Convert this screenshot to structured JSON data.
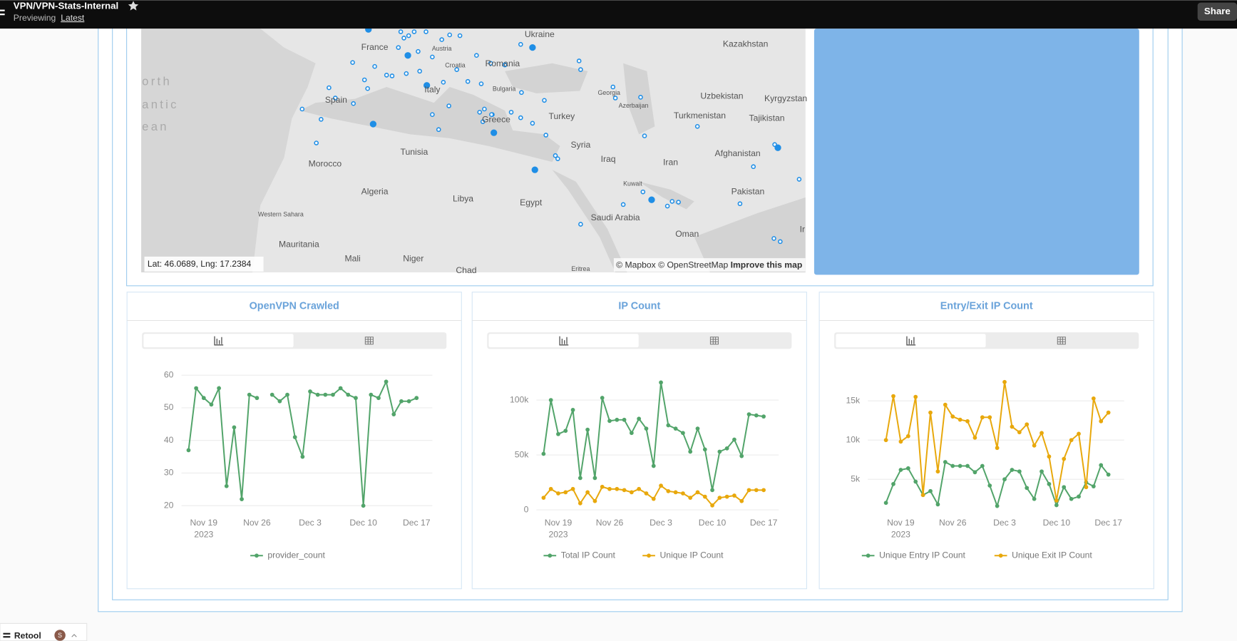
{
  "header": {
    "title": "VPN/VPN-Stats-Internal",
    "previewing": "Previewing",
    "version": "Latest",
    "share": "Share"
  },
  "map": {
    "labels": [
      "France",
      "Ukraine",
      "Kazakhstan",
      "Austria",
      "Croatia",
      "Romania",
      "Bulgaria",
      "Spain",
      "Italy",
      "Georgia",
      "Azerbaijan",
      "Uzbekistan",
      "Kyrgyzstan",
      "Greece",
      "Turkey",
      "Turkmenistan",
      "Tajikistan",
      "Syria",
      "Tunisia",
      "Morocco",
      "Iraq",
      "Iran",
      "Afghanistan",
      "Kuwait",
      "Algeria",
      "Libya",
      "Egypt",
      "Pakistan",
      "Western Sahara",
      "Saudi Arabia",
      "Oman",
      "Mauritania",
      "Mali",
      "Niger",
      "Chad",
      "Eritrea",
      "Ir",
      "orth",
      "antic",
      "ean"
    ],
    "coords": "Lat: 46.0689, Lng: 17.2384",
    "attribution": "© Mapbox © OpenStreetMap",
    "improve": "Improve this map"
  },
  "footer": {
    "brand": "Retool",
    "avatar": "S"
  },
  "chart_data": [
    {
      "type": "line",
      "title": "OpenVPN Crawled",
      "x": [
        "2023-11-17",
        "2023-11-18",
        "2023-11-19",
        "2023-11-20",
        "2023-11-21",
        "2023-11-22",
        "2023-11-23",
        "2023-11-24",
        "2023-11-25",
        "2023-11-26",
        "2023-11-27",
        "2023-11-28",
        "2023-11-29",
        "2023-11-30",
        "2023-12-01",
        "2023-12-02",
        "2023-12-03",
        "2023-12-04",
        "2023-12-05",
        "2023-12-06",
        "2023-12-07",
        "2023-12-08",
        "2023-12-09",
        "2023-12-10",
        "2023-12-11",
        "2023-12-12",
        "2023-12-13",
        "2023-12-14",
        "2023-12-15",
        "2023-12-16",
        "2023-12-17"
      ],
      "series": [
        {
          "name": "provider_count",
          "color": "#52a46a",
          "values": [
            37,
            56,
            53,
            51,
            56,
            26,
            44,
            22,
            54,
            53,
            null,
            54,
            52,
            54,
            41,
            35,
            55,
            54,
            54,
            54,
            56,
            54,
            53,
            20,
            54,
            53,
            58,
            48,
            52,
            52,
            53
          ]
        }
      ],
      "xlim": [
        "2023-11-17",
        "2023-12-17"
      ],
      "xticks": [
        {
          "value": "2023-11-19",
          "label": "Nov 19"
        },
        {
          "value": "2023-11-26",
          "label": "Nov 26"
        },
        {
          "value": "2023-12-03",
          "label": "Dec 3"
        },
        {
          "value": "2023-12-10",
          "label": "Dec 10"
        },
        {
          "value": "2023-12-17",
          "label": "Dec 17"
        }
      ],
      "year_label": "2023",
      "ylim": [
        18,
        62
      ],
      "yticks": [
        20,
        30,
        40,
        50,
        60
      ],
      "grid": true
    },
    {
      "type": "line",
      "title": "IP Count",
      "x": [
        "2023-11-17",
        "2023-11-18",
        "2023-11-19",
        "2023-11-20",
        "2023-11-21",
        "2023-11-22",
        "2023-11-23",
        "2023-11-24",
        "2023-11-25",
        "2023-11-26",
        "2023-11-27",
        "2023-11-28",
        "2023-11-29",
        "2023-11-30",
        "2023-12-01",
        "2023-12-02",
        "2023-12-03",
        "2023-12-04",
        "2023-12-05",
        "2023-12-06",
        "2023-12-07",
        "2023-12-08",
        "2023-12-09",
        "2023-12-10",
        "2023-12-11",
        "2023-12-12",
        "2023-12-13",
        "2023-12-14",
        "2023-12-15",
        "2023-12-16",
        "2023-12-17"
      ],
      "series": [
        {
          "name": "Total IP Count",
          "color": "#52a46a",
          "values": [
            51000,
            100000,
            69000,
            72000,
            91000,
            29000,
            73000,
            29000,
            102000,
            81000,
            82000,
            82000,
            70000,
            83000,
            74000,
            40000,
            116000,
            77000,
            74000,
            70000,
            53000,
            74000,
            55000,
            18000,
            53000,
            56000,
            64000,
            49000,
            87000,
            86000,
            85000
          ]
        },
        {
          "name": "Unique IP Count",
          "color": "#e8a80c",
          "values": [
            11000,
            19000,
            15000,
            16000,
            19000,
            6000,
            16000,
            8000,
            21000,
            19000,
            19000,
            18000,
            16000,
            19000,
            15000,
            10000,
            22000,
            17000,
            16000,
            15000,
            11000,
            16000,
            12000,
            4000,
            11000,
            12000,
            13000,
            8000,
            18000,
            18000,
            18000
          ]
        }
      ],
      "xlim": [
        "2023-11-17",
        "2023-12-17"
      ],
      "xticks": [
        {
          "value": "2023-11-19",
          "label": "Nov 19"
        },
        {
          "value": "2023-11-26",
          "label": "Nov 26"
        },
        {
          "value": "2023-12-03",
          "label": "Dec 3"
        },
        {
          "value": "2023-12-10",
          "label": "Dec 10"
        },
        {
          "value": "2023-12-17",
          "label": "Dec 17"
        }
      ],
      "year_label": "2023",
      "ylim": [
        0,
        120000
      ],
      "yticks": [
        0,
        {
          "value": 50000,
          "label": "50k"
        },
        {
          "value": 100000,
          "label": "100k"
        }
      ],
      "grid": true
    },
    {
      "type": "line",
      "title": "Entry/Exit IP Count",
      "x": [
        "2023-11-17",
        "2023-11-18",
        "2023-11-19",
        "2023-11-20",
        "2023-11-21",
        "2023-11-22",
        "2023-11-23",
        "2023-11-24",
        "2023-11-25",
        "2023-11-26",
        "2023-11-27",
        "2023-11-28",
        "2023-11-29",
        "2023-11-30",
        "2023-12-01",
        "2023-12-02",
        "2023-12-03",
        "2023-12-04",
        "2023-12-05",
        "2023-12-06",
        "2023-12-07",
        "2023-12-08",
        "2023-12-09",
        "2023-12-10",
        "2023-12-11",
        "2023-12-12",
        "2023-12-13",
        "2023-12-14",
        "2023-12-15",
        "2023-12-16",
        "2023-12-17"
      ],
      "series": [
        {
          "name": "Unique Entry IP Count",
          "color": "#52a46a",
          "values": [
            2000,
            4400,
            6200,
            6400,
            4700,
            3000,
            3500,
            1800,
            7200,
            6700,
            6700,
            6700,
            5900,
            6700,
            4200,
            1600,
            5000,
            6200,
            6000,
            3900,
            2500,
            6000,
            4400,
            1700,
            4000,
            2500,
            2800,
            4600,
            4100,
            6800,
            5600
          ]
        },
        {
          "name": "Unique Exit IP Count",
          "color": "#e8a80c",
          "values": [
            10000,
            15600,
            9800,
            10500,
            15500,
            3000,
            13500,
            6000,
            14500,
            13000,
            12600,
            12400,
            10300,
            12900,
            12900,
            9000,
            17400,
            11700,
            11000,
            12000,
            9300,
            10900,
            7900,
            2300,
            7600,
            10000,
            10800,
            4000,
            15300,
            12400,
            13500
          ]
        }
      ],
      "xlim": [
        "2023-11-17",
        "2023-12-17"
      ],
      "xticks": [
        {
          "value": "2023-11-19",
          "label": "Nov 19"
        },
        {
          "value": "2023-11-26",
          "label": "Nov 26"
        },
        {
          "value": "2023-12-03",
          "label": "Dec 3"
        },
        {
          "value": "2023-12-10",
          "label": "Dec 10"
        },
        {
          "value": "2023-12-17",
          "label": "Dec 17"
        }
      ],
      "year_label": "2023",
      "ylim": [
        0,
        18000
      ],
      "yticks": [
        {
          "value": 5000,
          "label": "5k"
        },
        {
          "value": 10000,
          "label": "10k"
        },
        {
          "value": 15000,
          "label": "15k"
        }
      ],
      "grid": true
    }
  ]
}
